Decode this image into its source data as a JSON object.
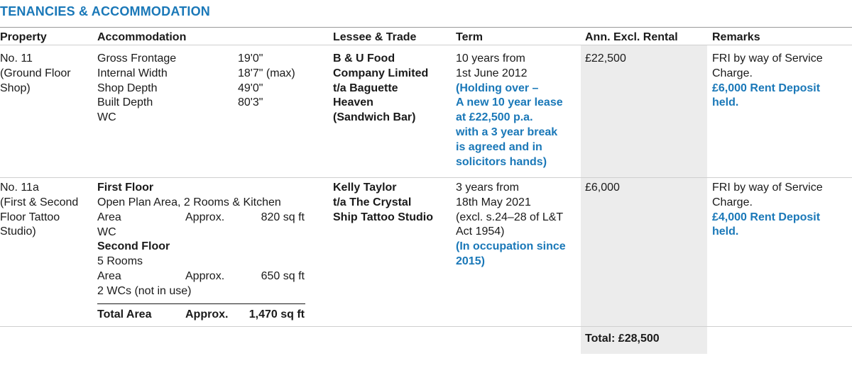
{
  "title": "TENANCIES & ACCOMMODATION",
  "headers": {
    "property": "Property",
    "accommodation": "Accommodation",
    "lessee": "Lessee & Trade",
    "term": "Term",
    "rental": "Ann. Excl. Rental",
    "remarks": "Remarks"
  },
  "row1": {
    "property": [
      "No. 11",
      "(Ground Floor",
      "Shop)"
    ],
    "accommodation": [
      {
        "label": "Gross Frontage",
        "value": "19'0\""
      },
      {
        "label": "Internal Width",
        "value": "18'7\" (max)"
      },
      {
        "label": "Shop Depth",
        "value": "49'0\""
      },
      {
        "label": "Built Depth",
        "value": "80'3\""
      },
      {
        "label": "WC",
        "value": ""
      }
    ],
    "lessee": [
      "B & U Food",
      "Company Limited",
      "t/a Baguette",
      "Heaven",
      "(Sandwich Bar)"
    ],
    "term": [
      "10 years from",
      "1st June 2012"
    ],
    "term_note": [
      "(Holding over –",
      "A new 10 year lease",
      "at £22,500 p.a.",
      "with a 3 year break",
      "is agreed and in",
      "solicitors hands)"
    ],
    "rental": "£22,500",
    "remarks": [
      "FRI by way of Service",
      "Charge."
    ],
    "remarks_note": [
      "£6,000 Rent Deposit",
      "held."
    ]
  },
  "row2": {
    "property": [
      "No. 11a",
      "(First & Second",
      "Floor Tattoo",
      "Studio)"
    ],
    "first_floor": {
      "heading": "First Floor",
      "desc": "Open Plan Area, 2 Rooms & Kitchen",
      "area_label": "Area",
      "approx": "Approx.",
      "area": "820 sq ft",
      "extra": "WC"
    },
    "second_floor": {
      "heading": "Second Floor",
      "desc": "5 Rooms",
      "area_label": "Area",
      "approx": "Approx.",
      "area": "650 sq ft",
      "extra": "2 WCs (not in use)"
    },
    "total": {
      "label": "Total Area",
      "approx": "Approx.",
      "value": "1,470 sq ft"
    },
    "lessee": [
      "Kelly Taylor",
      "t/a The Crystal",
      "Ship Tattoo Studio"
    ],
    "term": [
      "3 years from",
      "18th May 2021",
      "(excl. s.24–28 of L&T",
      "Act 1954)"
    ],
    "term_note": [
      "(In occupation since",
      "2015)"
    ],
    "rental": "£6,000",
    "remarks": [
      "FRI by way of Service",
      "Charge."
    ],
    "remarks_note": [
      "£4,000 Rent Deposit",
      "held."
    ]
  },
  "total_rental": "Total: £28,500"
}
